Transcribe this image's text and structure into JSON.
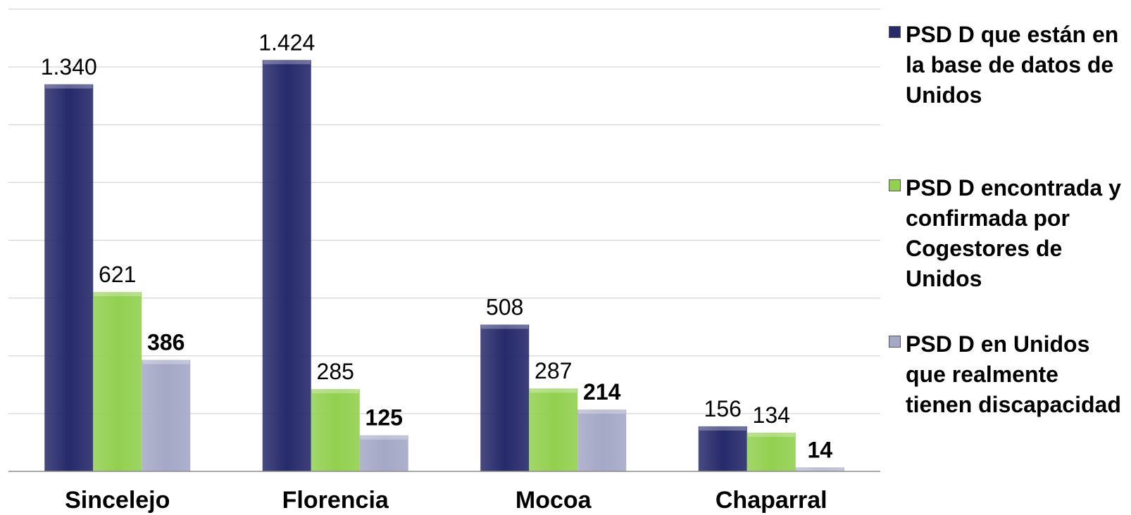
{
  "chart_data": {
    "type": "bar",
    "categories": [
      "Sincelejo",
      "Florencia",
      "Mocoa",
      "Chaparral"
    ],
    "series": [
      {
        "name": "PSD D que están en la base de datos de Unidos",
        "color": "#272a6b",
        "labels": [
          "1.340",
          "1.424",
          "508",
          "156"
        ],
        "values": [
          1340,
          1424,
          508,
          156
        ],
        "label_bold": false
      },
      {
        "name": "PSD D encontrada y confirmada por Cogestores de Unidos",
        "color": "#92d050",
        "labels": [
          "621",
          "285",
          "287",
          "134"
        ],
        "values": [
          621,
          285,
          287,
          134
        ],
        "label_bold": false
      },
      {
        "name": "PSD D  en Unidos que realmente tienen discapacidad",
        "color": "#a5a8c6",
        "labels": [
          "386",
          "125",
          "214",
          "14"
        ],
        "values": [
          386,
          125,
          214,
          14
        ],
        "label_bold": true
      }
    ],
    "ylim": [
      0,
      1600
    ],
    "grid": true,
    "legend_position": "right"
  }
}
